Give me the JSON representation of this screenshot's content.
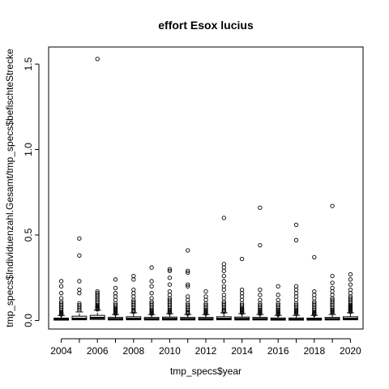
{
  "chart_data": {
    "type": "boxplot",
    "title": "effort Esox lucius",
    "xlabel": "tmp_specs$year",
    "ylabel": "tmp_specs$Individuenzahl.Gesamt/tmp_specs$befischteStrecke",
    "ylim": [
      -0.05,
      1.6
    ],
    "yticks": [
      "0.0",
      "0.5",
      "1.0",
      "1.5"
    ],
    "xtick_labels": [
      "2004",
      "2006",
      "2008",
      "2010",
      "2012",
      "2014",
      "2016",
      "2018",
      "2020"
    ],
    "categories": [
      "2004",
      "2005",
      "2006",
      "2007",
      "2008",
      "2009",
      "2010",
      "2011",
      "2012",
      "2013",
      "2014",
      "2015",
      "2016",
      "2017",
      "2018",
      "2019",
      "2020"
    ],
    "boxes": [
      {
        "year": "2004",
        "q1": 0.002,
        "median": 0.006,
        "q3": 0.014,
        "whisker_high": 0.03,
        "outliers": [
          0.23,
          0.2,
          0.16,
          0.13,
          0.11,
          0.1,
          0.09,
          0.08,
          0.07,
          0.06,
          0.05,
          0.045,
          0.04,
          0.035
        ]
      },
      {
        "year": "2005",
        "q1": 0.004,
        "median": 0.01,
        "q3": 0.025,
        "whisker_high": 0.05,
        "outliers": [
          0.48,
          0.38,
          0.23,
          0.18,
          0.16,
          0.1,
          0.09,
          0.08,
          0.07,
          0.06
        ]
      },
      {
        "year": "2006",
        "q1": 0.006,
        "median": 0.015,
        "q3": 0.03,
        "whisker_high": 0.06,
        "outliers": [
          1.53,
          0.17,
          0.16,
          0.15,
          0.14,
          0.13,
          0.12,
          0.11,
          0.1,
          0.09,
          0.085,
          0.08,
          0.075,
          0.07,
          0.065
        ]
      },
      {
        "year": "2007",
        "q1": 0.003,
        "median": 0.008,
        "q3": 0.018,
        "whisker_high": 0.035,
        "outliers": [
          0.24,
          0.19,
          0.16,
          0.14,
          0.12,
          0.1,
          0.09,
          0.08,
          0.07,
          0.065,
          0.06,
          0.055,
          0.05,
          0.045,
          0.04
        ]
      },
      {
        "year": "2008",
        "q1": 0.004,
        "median": 0.01,
        "q3": 0.022,
        "whisker_high": 0.045,
        "outliers": [
          0.26,
          0.24,
          0.18,
          0.16,
          0.14,
          0.12,
          0.11,
          0.1,
          0.09,
          0.08,
          0.07,
          0.06,
          0.055,
          0.05
        ]
      },
      {
        "year": "2009",
        "q1": 0.003,
        "median": 0.008,
        "q3": 0.018,
        "whisker_high": 0.035,
        "outliers": [
          0.31,
          0.23,
          0.2,
          0.16,
          0.13,
          0.11,
          0.1,
          0.09,
          0.08,
          0.07,
          0.06,
          0.055,
          0.05,
          0.045,
          0.04
        ]
      },
      {
        "year": "2010",
        "q1": 0.003,
        "median": 0.009,
        "q3": 0.02,
        "whisker_high": 0.04,
        "outliers": [
          0.3,
          0.29,
          0.25,
          0.21,
          0.17,
          0.15,
          0.13,
          0.12,
          0.11,
          0.1,
          0.09,
          0.08,
          0.07,
          0.06,
          0.055,
          0.05,
          0.045
        ]
      },
      {
        "year": "2011",
        "q1": 0.003,
        "median": 0.008,
        "q3": 0.018,
        "whisker_high": 0.035,
        "outliers": [
          0.41,
          0.29,
          0.28,
          0.21,
          0.2,
          0.14,
          0.12,
          0.1,
          0.09,
          0.08,
          0.07,
          0.06,
          0.05,
          0.045,
          0.04
        ]
      },
      {
        "year": "2012",
        "q1": 0.003,
        "median": 0.008,
        "q3": 0.018,
        "whisker_high": 0.035,
        "outliers": [
          0.17,
          0.14,
          0.12,
          0.1,
          0.09,
          0.08,
          0.07,
          0.06,
          0.055,
          0.05,
          0.045,
          0.04
        ]
      },
      {
        "year": "2013",
        "q1": 0.004,
        "median": 0.01,
        "q3": 0.022,
        "whisker_high": 0.045,
        "outliers": [
          0.6,
          0.33,
          0.31,
          0.29,
          0.26,
          0.23,
          0.2,
          0.18,
          0.15,
          0.13,
          0.11,
          0.1,
          0.09,
          0.08,
          0.07,
          0.06,
          0.055,
          0.05
        ]
      },
      {
        "year": "2014",
        "q1": 0.003,
        "median": 0.009,
        "q3": 0.02,
        "whisker_high": 0.04,
        "outliers": [
          0.36,
          0.18,
          0.16,
          0.14,
          0.12,
          0.1,
          0.09,
          0.08,
          0.07,
          0.065,
          0.06,
          0.055,
          0.05,
          0.045
        ]
      },
      {
        "year": "2015",
        "q1": 0.003,
        "median": 0.008,
        "q3": 0.018,
        "whisker_high": 0.035,
        "outliers": [
          0.66,
          0.44,
          0.18,
          0.15,
          0.12,
          0.1,
          0.09,
          0.08,
          0.07,
          0.06,
          0.055,
          0.05,
          0.045,
          0.04
        ]
      },
      {
        "year": "2016",
        "q1": 0.002,
        "median": 0.006,
        "q3": 0.015,
        "whisker_high": 0.03,
        "outliers": [
          0.2,
          0.15,
          0.12,
          0.1,
          0.09,
          0.08,
          0.07,
          0.06,
          0.055,
          0.05,
          0.045,
          0.04,
          0.035
        ]
      },
      {
        "year": "2017",
        "q1": 0.002,
        "median": 0.006,
        "q3": 0.015,
        "whisker_high": 0.03,
        "outliers": [
          0.56,
          0.47,
          0.2,
          0.18,
          0.16,
          0.14,
          0.12,
          0.1,
          0.09,
          0.08,
          0.07,
          0.06,
          0.055,
          0.05,
          0.045,
          0.04
        ]
      },
      {
        "year": "2018",
        "q1": 0.002,
        "median": 0.006,
        "q3": 0.014,
        "whisker_high": 0.03,
        "outliers": [
          0.37,
          0.17,
          0.15,
          0.13,
          0.11,
          0.1,
          0.09,
          0.08,
          0.07,
          0.06,
          0.05,
          0.045,
          0.04,
          0.035
        ]
      },
      {
        "year": "2019",
        "q1": 0.003,
        "median": 0.008,
        "q3": 0.018,
        "whisker_high": 0.035,
        "outliers": [
          0.67,
          0.26,
          0.22,
          0.19,
          0.17,
          0.15,
          0.13,
          0.12,
          0.11,
          0.1,
          0.09,
          0.08,
          0.07,
          0.06,
          0.055,
          0.05,
          0.045
        ]
      },
      {
        "year": "2020",
        "q1": 0.004,
        "median": 0.01,
        "q3": 0.022,
        "whisker_high": 0.045,
        "outliers": [
          0.27,
          0.24,
          0.21,
          0.18,
          0.16,
          0.14,
          0.13,
          0.12,
          0.11,
          0.1,
          0.09,
          0.085,
          0.08,
          0.075,
          0.07,
          0.065,
          0.06,
          0.055,
          0.05
        ]
      }
    ],
    "grid": false,
    "legend": "none"
  }
}
